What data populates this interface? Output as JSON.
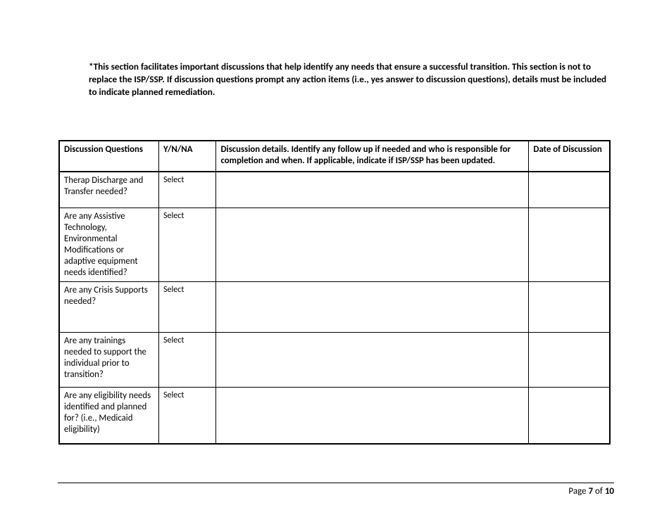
{
  "intro_text": "*This section facilitates important discussions that help identify any needs that ensure a successful transition. This section is not to replace the ISP/SSP.  If discussion questions prompt any action items (i.e., yes answer to discussion questions), details must be included to indicate planned remediation.",
  "table": {
    "headers": {
      "questions": "Discussion Questions",
      "ynna": "Y/N/NA",
      "details": "Discussion details. Identify any follow up if needed and who is responsible for completion and when. If applicable, indicate if ISP/SSP has been updated.",
      "date": "Date of Discussion"
    },
    "rows": [
      {
        "question": "Therap Discharge and Transfer needed?",
        "ynna": "Select",
        "details": "",
        "date": ""
      },
      {
        "question": "Are any Assistive Technology, Environmental Modifications or adaptive equipment needs identified?",
        "ynna": "Select",
        "details": "",
        "date": ""
      },
      {
        "question": "Are any Crisis Supports needed?",
        "ynna": "Select",
        "details": "",
        "date": ""
      },
      {
        "question": "Are any trainings needed to support the individual prior to transition?",
        "ynna": "Select",
        "details": "",
        "date": ""
      },
      {
        "question": "Are any eligibility needs identified and planned for? (i.e., Medicaid eligibility)",
        "ynna": "Select",
        "details": "",
        "date": ""
      }
    ]
  },
  "footer": {
    "prefix": "Page ",
    "page_num": "7",
    "of": " of ",
    "total": "10"
  },
  "colors": {
    "text": "#000000",
    "background": "#ffffff",
    "border": "#000000"
  }
}
